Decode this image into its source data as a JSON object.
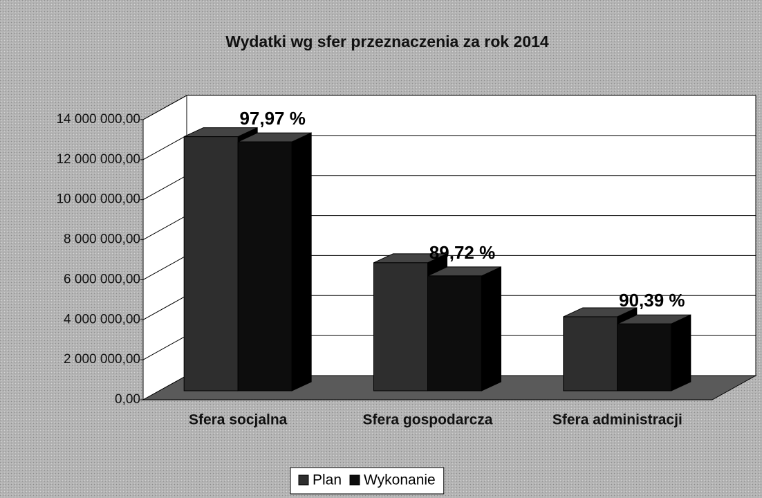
{
  "chart_data": {
    "type": "bar3d",
    "title": "Wydatki wg sfer przeznaczenia za rok 2014",
    "categories": [
      "Sfera socjalna",
      "Sfera gospodarcza",
      "Sfera administracji"
    ],
    "series": [
      {
        "name": "Plan",
        "color": "#2e2e2e",
        "values": [
          12700000,
          6400000,
          3700000
        ]
      },
      {
        "name": "Wykonanie",
        "color": "#0d0d0d",
        "values": [
          12442000,
          5742000,
          3344000
        ]
      }
    ],
    "annotations": [
      "97,97 %",
      "89,72 %",
      "90,39 %"
    ],
    "ylim": [
      0,
      14000000
    ],
    "yticks": [
      {
        "value": 0,
        "label": "0,00"
      },
      {
        "value": 2000000,
        "label": "2 000 000,00"
      },
      {
        "value": 4000000,
        "label": "4 000 000,00"
      },
      {
        "value": 6000000,
        "label": "6 000 000,00"
      },
      {
        "value": 8000000,
        "label": "8 000 000,00"
      },
      {
        "value": 10000000,
        "label": "10 000 000,00"
      },
      {
        "value": 12000000,
        "label": "12 000 000,00"
      },
      {
        "value": 14000000,
        "label": "14 000 000,00"
      }
    ],
    "grid": true,
    "legend": "bottom"
  }
}
